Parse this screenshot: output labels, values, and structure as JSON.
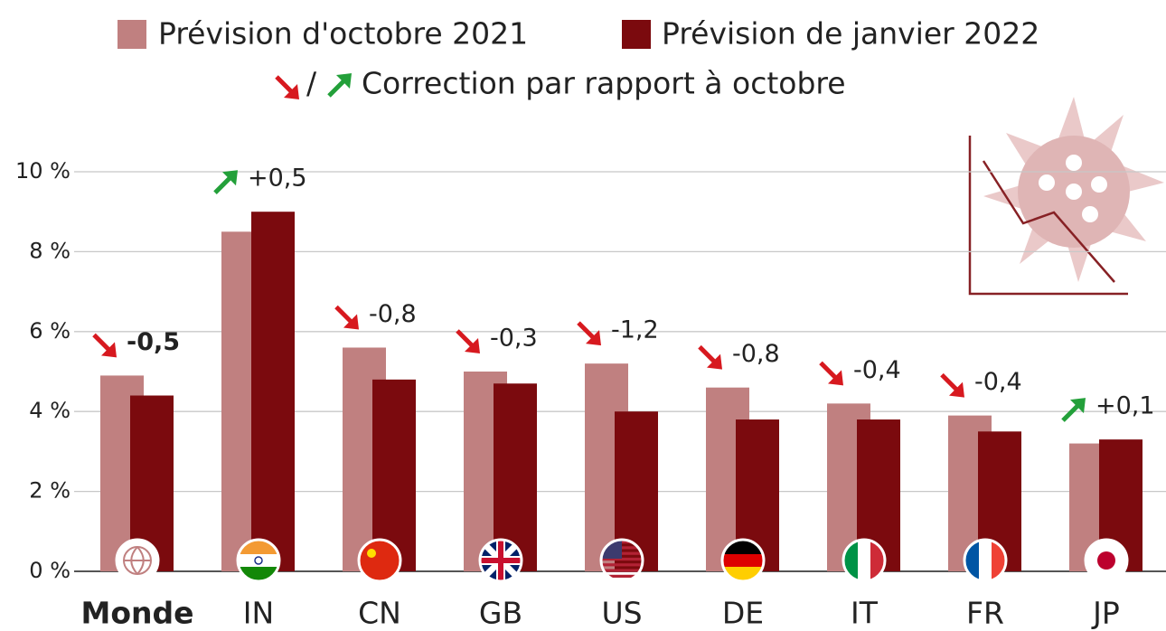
{
  "chart_data": {
    "type": "bar",
    "categories": [
      "Monde",
      "IN",
      "CN",
      "GB",
      "US",
      "DE",
      "IT",
      "FR",
      "JP"
    ],
    "series": [
      {
        "name": "Prévision d'octobre 2021",
        "color": "#c08080",
        "values": [
          4.9,
          8.5,
          5.6,
          5.0,
          5.2,
          4.6,
          4.2,
          3.9,
          3.2
        ]
      },
      {
        "name": "Prévision de janvier 2022",
        "color": "#7b0a0e",
        "values": [
          4.4,
          9.0,
          4.8,
          4.7,
          4.0,
          3.8,
          3.8,
          3.5,
          3.3
        ]
      }
    ],
    "corrections": {
      "values": [
        -0.5,
        0.5,
        -0.8,
        -0.3,
        -1.2,
        -0.8,
        -0.4,
        -0.4,
        0.1
      ],
      "value_labels": [
        "-0,5",
        "+0,5",
        "-0,8",
        "-0,3",
        "-1,2",
        "-0,8",
        "-0,4",
        "-0,4",
        "+0,1"
      ],
      "down_color": "#d7191f",
      "up_color": "#23a03a"
    },
    "correction_legend": {
      "separator": "/",
      "label": "Correction par rapport à octobre"
    },
    "ylim": [
      0,
      10
    ],
    "yticks": [
      {
        "value": 0,
        "label": "0 %"
      },
      {
        "value": 2,
        "label": "2 %"
      },
      {
        "value": 4,
        "label": "4 %"
      },
      {
        "value": 6,
        "label": "6 %"
      },
      {
        "value": 8,
        "label": "8 %"
      },
      {
        "value": 10,
        "label": "10 %"
      }
    ],
    "grid": true
  }
}
